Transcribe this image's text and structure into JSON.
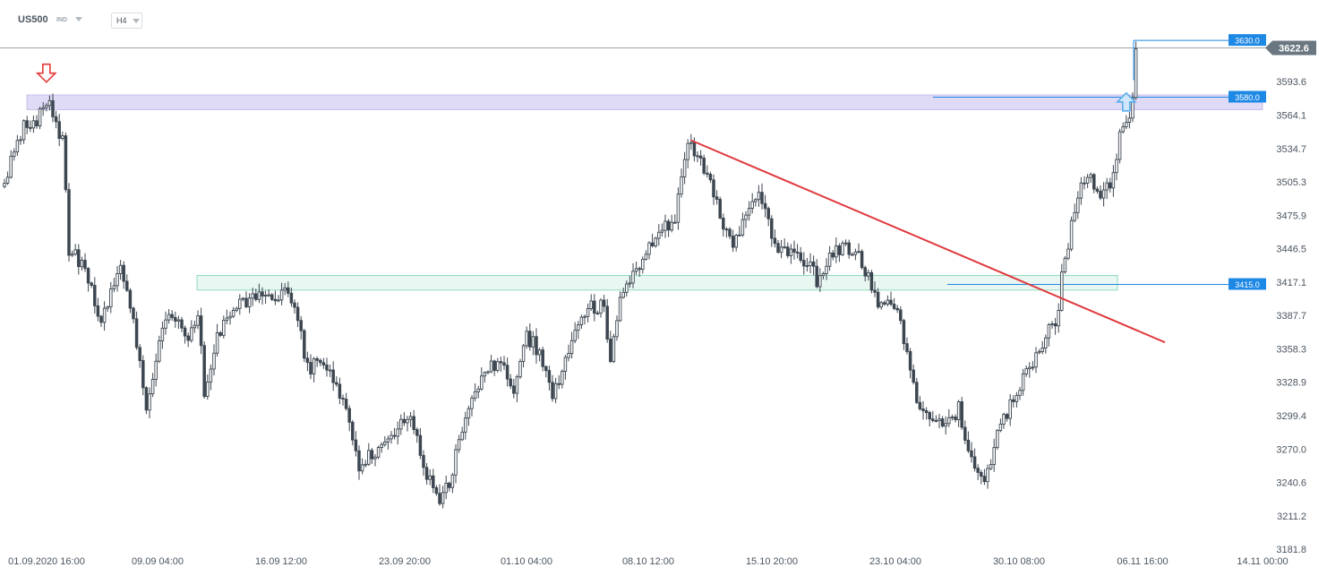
{
  "header": {
    "symbol": "US500",
    "exchange": "IND",
    "timeframe": "H4"
  },
  "colors": {
    "candle": "#3c4650",
    "resistance_zone_fill": "#dcd6f4",
    "resistance_zone_stroke": "#b6aee4",
    "support_zone_fill": "#e6f7f1",
    "support_zone_stroke": "#6dcfa6",
    "trendline": "#e0393e",
    "level_line": "#1e88e5",
    "level_label_bg": "#1e88e5",
    "price_label_bg": "#6b7780",
    "arrow_down": "#e53935",
    "arrow_up": "#5aaeee",
    "current_price_line": "#7d868e"
  },
  "chart_data": {
    "type": "candlestick",
    "symbol": "US500",
    "timeframe": "H4",
    "current_price": 3622.6,
    "current_price_label": "3622.6",
    "y_ticks": [
      3593.6,
      3564.1,
      3534.7,
      3505.3,
      3475.9,
      3446.5,
      3417.1,
      3387.7,
      3358.3,
      3328.9,
      3299.4,
      3270.0,
      3240.6,
      3211.2,
      3181.8
    ],
    "y_tick_labels": [
      "3593.6",
      "3564.1",
      "3534.7",
      "3505.3",
      "3475.9",
      "3446.5",
      "3417.1",
      "3387.7",
      "3358.3",
      "3328.9",
      "3299.4",
      "3270.0",
      "3240.6",
      "3211.2",
      "3181.8"
    ],
    "x_labels": [
      "01.09.2020  16:00",
      "09.09  04:00",
      "16.09  12:00",
      "23.09  20:00",
      "01.10  04:00",
      "08.10  12:00",
      "15.10  20:00",
      "23.10  04:00",
      "30.10  08:00",
      "06.11  16:00",
      "14.11  00:00"
    ],
    "anchors": [
      [
        0,
        3505
      ],
      [
        6,
        3555
      ],
      [
        10,
        3560
      ],
      [
        14,
        3580
      ],
      [
        16,
        3552
      ],
      [
        18,
        3545
      ],
      [
        20,
        3445
      ],
      [
        24,
        3435
      ],
      [
        30,
        3385
      ],
      [
        36,
        3435
      ],
      [
        40,
        3380
      ],
      [
        44,
        3310
      ],
      [
        48,
        3365
      ],
      [
        52,
        3390
      ],
      [
        56,
        3365
      ],
      [
        60,
        3390
      ],
      [
        62,
        3320
      ],
      [
        66,
        3370
      ],
      [
        72,
        3395
      ],
      [
        78,
        3405
      ],
      [
        82,
        3405
      ],
      [
        86,
        3408
      ],
      [
        90,
        3400
      ],
      [
        94,
        3340
      ],
      [
        98,
        3348
      ],
      [
        102,
        3330
      ],
      [
        106,
        3300
      ],
      [
        110,
        3250
      ],
      [
        114,
        3268
      ],
      [
        118,
        3275
      ],
      [
        122,
        3290
      ],
      [
        126,
        3300
      ],
      [
        130,
        3255
      ],
      [
        134,
        3225
      ],
      [
        138,
        3240
      ],
      [
        142,
        3285
      ],
      [
        146,
        3320
      ],
      [
        150,
        3345
      ],
      [
        154,
        3345
      ],
      [
        158,
        3315
      ],
      [
        162,
        3370
      ],
      [
        166,
        3355
      ],
      [
        170,
        3315
      ],
      [
        174,
        3350
      ],
      [
        178,
        3380
      ],
      [
        182,
        3395
      ],
      [
        186,
        3395
      ],
      [
        188,
        3345
      ],
      [
        192,
        3415
      ],
      [
        196,
        3430
      ],
      [
        200,
        3448
      ],
      [
        204,
        3460
      ],
      [
        208,
        3475
      ],
      [
        212,
        3538
      ],
      [
        214,
        3530
      ],
      [
        218,
        3510
      ],
      [
        222,
        3475
      ],
      [
        226,
        3450
      ],
      [
        230,
        3480
      ],
      [
        234,
        3495
      ],
      [
        236,
        3475
      ],
      [
        240,
        3440
      ],
      [
        244,
        3445
      ],
      [
        248,
        3438
      ],
      [
        252,
        3420
      ],
      [
        256,
        3440
      ],
      [
        260,
        3448
      ],
      [
        264,
        3445
      ],
      [
        268,
        3420
      ],
      [
        272,
        3395
      ],
      [
        276,
        3398
      ],
      [
        280,
        3360
      ],
      [
        284,
        3300
      ],
      [
        288,
        3295
      ],
      [
        292,
        3290
      ],
      [
        296,
        3305
      ],
      [
        300,
        3260
      ],
      [
        304,
        3240
      ],
      [
        308,
        3280
      ],
      [
        312,
        3310
      ],
      [
        316,
        3330
      ],
      [
        320,
        3355
      ],
      [
        324,
        3375
      ],
      [
        326,
        3372
      ],
      [
        328,
        3420
      ],
      [
        332,
        3480
      ],
      [
        334,
        3500
      ],
      [
        336,
        3512
      ],
      [
        340,
        3490
      ],
      [
        344,
        3510
      ],
      [
        346,
        3545
      ],
      [
        348,
        3553
      ],
      [
        350,
        3580
      ],
      [
        351,
        3622.6
      ]
    ],
    "candle_count": 352,
    "levels": [
      {
        "price": 3630.0,
        "label": "3630.0"
      },
      {
        "price": 3580.0,
        "label": "3580.0"
      },
      {
        "price": 3415.0,
        "label": "3415.0"
      }
    ],
    "zones": [
      {
        "name": "resistance",
        "low": 3569,
        "high": 3582
      },
      {
        "name": "support",
        "low": 3410,
        "high": 3423
      }
    ],
    "trendline": {
      "from": [
        213,
        3542
      ],
      "to": [
        360,
        3364
      ]
    },
    "arrows": [
      {
        "type": "down",
        "index": 13,
        "price": 3598
      },
      {
        "type": "up",
        "index": 348,
        "price": 3575
      }
    ],
    "grid": false,
    "price_axis": "right"
  }
}
